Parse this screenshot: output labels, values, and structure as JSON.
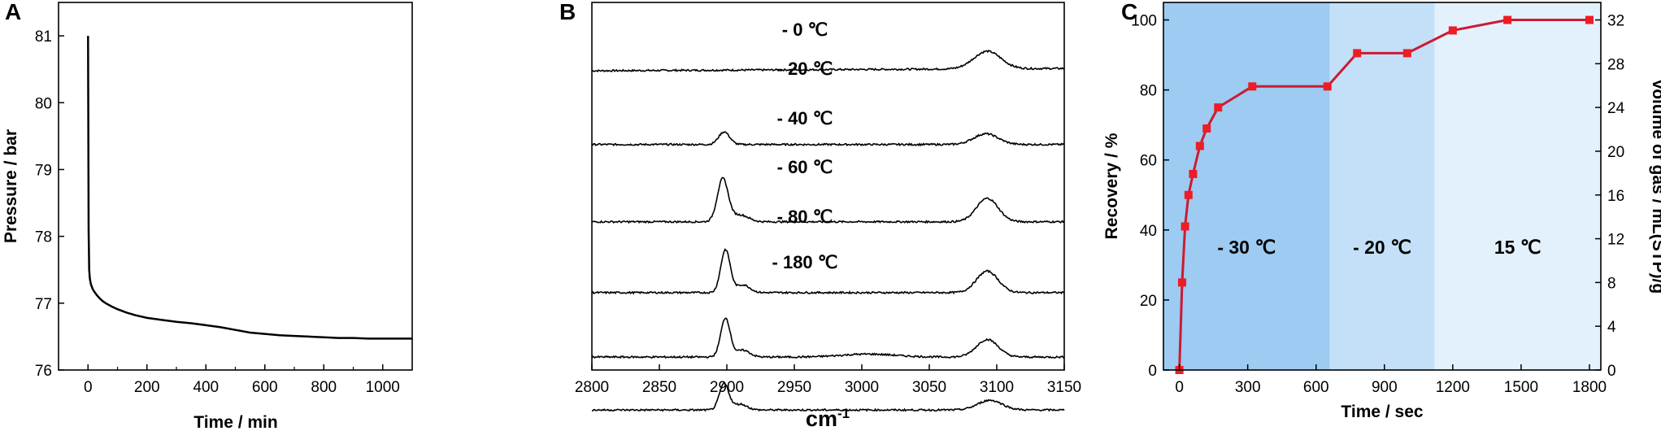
{
  "chart_data": [
    {
      "type": "line",
      "panel": "A",
      "xlabel": "Time / min",
      "ylabel": "Pressure / bar",
      "xlim": [
        -100,
        1100
      ],
      "ylim": [
        76,
        81.5
      ],
      "xticks": [
        0,
        200,
        400,
        600,
        800,
        1000
      ],
      "yticks": [
        76,
        77,
        78,
        79,
        80,
        81
      ],
      "x": [
        0,
        2,
        4,
        6,
        8,
        10,
        15,
        20,
        30,
        40,
        50,
        60,
        80,
        100,
        130,
        160,
        200,
        250,
        300,
        350,
        400,
        450,
        500,
        550,
        600,
        650,
        700,
        750,
        800,
        850,
        900,
        950,
        1000,
        1050,
        1100
      ],
      "y": [
        81.0,
        78.1,
        77.5,
        77.38,
        77.32,
        77.28,
        77.22,
        77.18,
        77.12,
        77.07,
        77.03,
        77.0,
        76.95,
        76.91,
        76.86,
        76.82,
        76.78,
        76.75,
        76.72,
        76.7,
        76.67,
        76.64,
        76.6,
        76.56,
        76.54,
        76.52,
        76.51,
        76.5,
        76.49,
        76.48,
        76.48,
        76.47,
        76.47,
        76.47,
        76.47
      ]
    },
    {
      "type": "line",
      "panel": "B",
      "xlabel": "cm",
      "xlabel_sup": "-1",
      "xlim": [
        2800,
        3150
      ],
      "xticks": [
        2800,
        2850,
        2900,
        2950,
        3000,
        3050,
        3100,
        3150
      ],
      "series": [
        {
          "name": "- 0 ℃",
          "baseline": 0.33,
          "peaks": [
            {
              "x": 3093,
              "h": 0.9,
              "w": 10
            }
          ],
          "offset": 0.6
        },
        {
          "name": "- 20 ℃",
          "baseline": 1.36,
          "peaks": [
            {
              "x": 2898,
              "h": 0.65,
              "w": 4
            },
            {
              "x": 3092,
              "h": 0.55,
              "w": 9
            }
          ],
          "offset": 0
        },
        {
          "name": "- 40 ℃",
          "baseline": 2.44,
          "peaks": [
            {
              "x": 2897,
              "h": 2.2,
              "w": 4
            },
            {
              "x": 2910,
              "h": 0.35,
              "w": 6
            },
            {
              "x": 3093,
              "h": 1.2,
              "w": 8
            }
          ],
          "offset": 0
        },
        {
          "name": "- 60 ℃",
          "baseline": 3.43,
          "peaks": [
            {
              "x": 2899,
              "h": 2.2,
              "w": 3.5
            },
            {
              "x": 2912,
              "h": 0.4,
              "w": 5
            },
            {
              "x": 3093,
              "h": 1.1,
              "w": 8
            }
          ],
          "offset": 0
        },
        {
          "name": "- 80 ℃",
          "baseline": 4.33,
          "peaks": [
            {
              "x": 2899,
              "h": 2.0,
              "w": 3.5
            },
            {
              "x": 2912,
              "h": 0.35,
              "w": 5
            },
            {
              "x": 3005,
              "h": 0.15,
              "w": 20
            },
            {
              "x": 3093,
              "h": 0.9,
              "w": 8
            }
          ],
          "offset": 0
        },
        {
          "name": "- 180 ℃",
          "baseline": 5.07,
          "peaks": [
            {
              "x": 2898,
              "h": 1.35,
              "w": 3.5
            },
            {
              "x": 2910,
              "h": 0.3,
              "w": 5
            },
            {
              "x": 3095,
              "h": 0.5,
              "w": 9
            }
          ],
          "offset": 0
        }
      ]
    },
    {
      "type": "line",
      "panel": "C",
      "xlabel": "Time / sec",
      "ylabel": "Recovery / %",
      "ylabel_right": "Volume of gas / mL(STP)/g",
      "xlim": [
        -70,
        1850
      ],
      "ylim": [
        0,
        105
      ],
      "ylim_right": [
        0,
        33.6
      ],
      "xticks": [
        0,
        300,
        600,
        900,
        1200,
        1500,
        1800
      ],
      "yticks": [
        0,
        20,
        40,
        60,
        80,
        100
      ],
      "yticks_right": [
        0,
        4,
        8,
        12,
        16,
        20,
        24,
        28,
        32
      ],
      "x": [
        0,
        12,
        25,
        40,
        60,
        90,
        120,
        170,
        320,
        650,
        780,
        1000,
        1200,
        1440,
        1800
      ],
      "y": [
        0,
        25,
        41,
        50,
        56,
        64,
        69,
        75,
        81,
        81,
        90.5,
        90.5,
        97,
        100,
        100
      ],
      "regions": [
        {
          "label": "- 30 ℃",
          "x0": -70,
          "x1": 660,
          "color": "#9dcbf2"
        },
        {
          "label": "- 20 ℃",
          "x0": 660,
          "x1": 1120,
          "color": "#c3e0f8"
        },
        {
          "label": "15 ℃",
          "x0": 1120,
          "x1": 1850,
          "color": "#e3f1fc"
        }
      ],
      "line_color": "#cc1a33",
      "marker_color": "#ee1c24"
    }
  ]
}
